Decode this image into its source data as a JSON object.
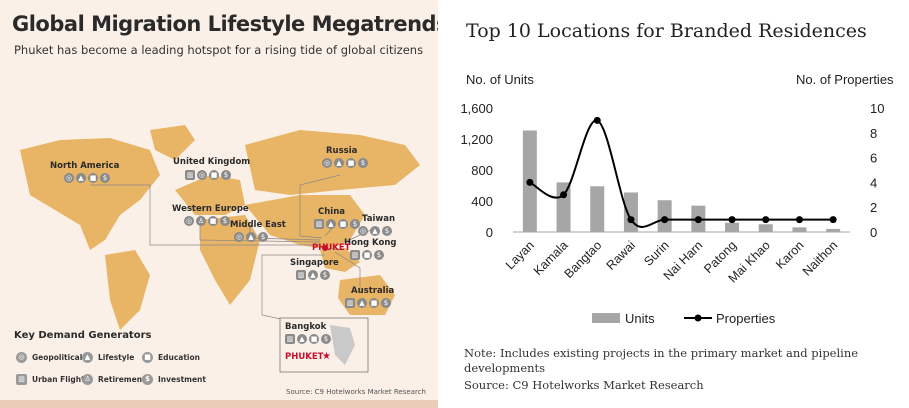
{
  "infographic": {
    "title": "Global Migration Lifestyle Megatrends",
    "subtitle": "Phuket has become a leading hotspot for a rising tide of global citizens",
    "regions": [
      {
        "name": "North America",
        "icons": [
          "globe-icon",
          "lifestyle-icon",
          "education-icon",
          "investment-icon"
        ]
      },
      {
        "name": "United Kingdom",
        "icons": [
          "urban-flight-icon",
          "globe-icon",
          "education-icon",
          "investment-icon"
        ]
      },
      {
        "name": "Russia",
        "icons": [
          "globe-icon",
          "lifestyle-icon",
          "education-icon",
          "investment-icon"
        ]
      },
      {
        "name": "Western Europe",
        "icons": [
          "globe-icon",
          "retirement-icon",
          "education-icon",
          "investment-icon"
        ]
      },
      {
        "name": "Middle East",
        "icons": [
          "globe-icon",
          "lifestyle-icon",
          "investment-icon"
        ]
      },
      {
        "name": "China",
        "icons": [
          "urban-flight-icon",
          "lifestyle-icon",
          "education-icon",
          "investment-icon"
        ]
      },
      {
        "name": "Taiwan",
        "icons": [
          "globe-icon",
          "lifestyle-icon",
          "investment-icon"
        ]
      },
      {
        "name": "Hong Kong",
        "icons": [
          "urban-flight-icon",
          "education-icon",
          "investment-icon"
        ]
      },
      {
        "name": "Singapore",
        "icons": [
          "urban-flight-icon",
          "lifestyle-icon",
          "investment-icon"
        ]
      },
      {
        "name": "Australia",
        "icons": [
          "urban-flight-icon",
          "lifestyle-icon",
          "education-icon",
          "investment-icon"
        ]
      },
      {
        "name": "Bangkok",
        "icons": [
          "urban-flight-icon",
          "lifestyle-icon",
          "education-icon",
          "investment-icon"
        ]
      }
    ],
    "phuket_label": "PHUKET",
    "legend_title": "Key Demand Generators",
    "legend": [
      "Geopolitical",
      "Lifestyle",
      "Education",
      "Urban Flight",
      "Retirement",
      "Investment"
    ],
    "source": "Source: C9 Hotelworks Market Research",
    "colors": {
      "land": "#e8b466",
      "background": "#fbf0e8",
      "accent": "#c8102e"
    }
  },
  "chart": {
    "title": "Top 10 Locations for Branded Residences",
    "left_axis_label": "No. of Units",
    "right_axis_label": "No. of Properties",
    "left_ticks": [
      "0",
      "400",
      "800",
      "1,200",
      "1,600"
    ],
    "right_ticks": [
      "0",
      "2",
      "4",
      "6",
      "8",
      "10"
    ],
    "legend_units": "Units",
    "legend_properties": "Properties",
    "note": "Note: Includes existing projects in the primary market and pipeline developments",
    "source": "Source: C9 Hotelworks Market Research"
  },
  "chart_data": {
    "type": "bar",
    "categories": [
      "Layan",
      "Kamala",
      "Bangtao",
      "Rawai",
      "Surin",
      "Nai Harn",
      "Patong",
      "Mai Khao",
      "Karon",
      "Naithon"
    ],
    "series": [
      {
        "name": "Units",
        "type": "bar",
        "axis": "left",
        "color": "#a6a6a6",
        "values": [
          1310,
          640,
          590,
          510,
          410,
          340,
          120,
          100,
          60,
          40
        ]
      },
      {
        "name": "Properties",
        "type": "line",
        "axis": "right",
        "color": "#000000",
        "values": [
          4,
          3,
          9,
          1,
          1,
          1,
          1,
          1,
          1,
          1
        ]
      }
    ],
    "ylim_left": [
      0,
      1600
    ],
    "ylim_right": [
      0,
      10
    ],
    "grid": false,
    "legend_position": "bottom"
  }
}
